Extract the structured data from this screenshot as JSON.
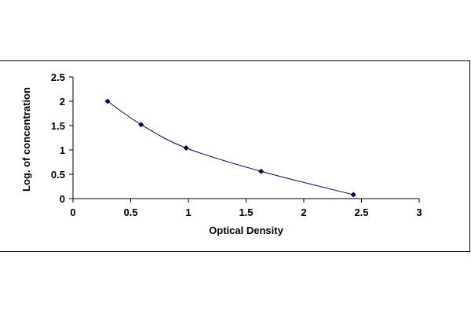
{
  "chart_data": {
    "type": "scatter",
    "title": "",
    "xlabel": "Optical Density",
    "ylabel": "Log. of concentration",
    "xlim": [
      0,
      3
    ],
    "ylim": [
      0,
      2.5
    ],
    "xticks": [
      "0",
      "0.5",
      "1",
      "1.5",
      "2",
      "2.5",
      "3"
    ],
    "yticks": [
      "0",
      "0.5",
      "1",
      "1.5",
      "2",
      "2.5"
    ],
    "grid": false,
    "legend": "none",
    "series": [
      {
        "x": [
          0.3,
          0.59,
          0.98,
          1.63,
          2.43
        ],
        "y": [
          2.0,
          1.52,
          1.04,
          0.56,
          0.08
        ],
        "marker": "diamond",
        "line": "smoothed",
        "color": "#000066"
      }
    ]
  }
}
